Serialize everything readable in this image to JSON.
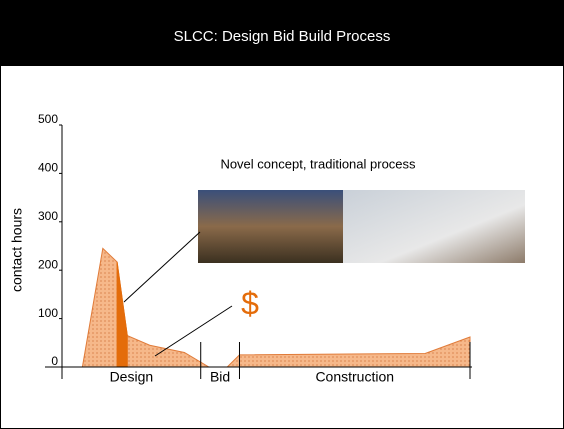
{
  "chart_data": {
    "type": "area",
    "title": "SLCC: Design Bid Build Process",
    "ylabel": "contact hours",
    "annotation": "Novel concept, traditional process",
    "callout": "$",
    "ylim": [
      0,
      500
    ],
    "yticks": [
      0,
      100,
      200,
      300,
      400,
      500
    ],
    "xlim": [
      0,
      100
    ],
    "phases": [
      "Design",
      "Bid",
      "Construction"
    ],
    "phase_bounds": [
      0,
      34,
      43.5,
      100
    ],
    "series": [
      {
        "color": "#f4b183",
        "x": [
          5,
          10,
          13.5,
          16,
          21.5,
          30,
          36,
          40.5,
          43.5,
          89,
          100
        ],
        "values": [
          0,
          245,
          217,
          65,
          45,
          30,
          0,
          0,
          25,
          28,
          62
        ]
      },
      {
        "color": "#e46c0a",
        "x": [
          13.5,
          13.5,
          16,
          16
        ],
        "values": [
          0,
          217,
          65,
          0
        ]
      }
    ]
  }
}
